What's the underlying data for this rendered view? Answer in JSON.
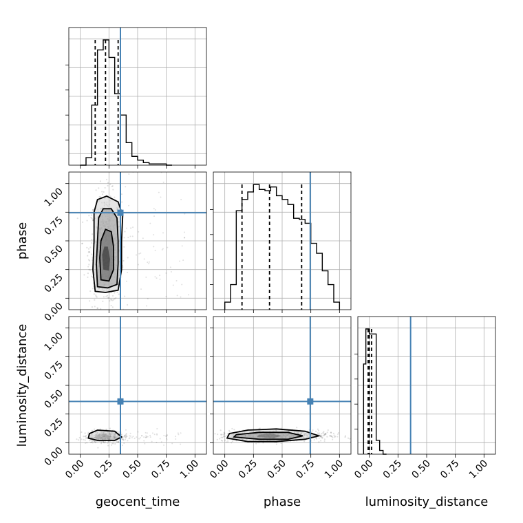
{
  "chart_data": {
    "type": "corner",
    "parameters": [
      "geocent_time",
      "phase",
      "luminosity_distance"
    ],
    "axis_range": [
      -0.1,
      1.1
    ],
    "tick_labels": [
      "0.00",
      "0.25",
      "0.50",
      "0.75",
      "1.00"
    ],
    "tick_values": [
      0,
      0.25,
      0.5,
      0.75,
      1.0
    ],
    "grid": true,
    "truths": {
      "geocent_time": 0.35,
      "phase": 0.745,
      "luminosity_distance": 0.36
    },
    "colors": {
      "truth": "#4682b4",
      "samples": "#000000",
      "grid": "#b0b0b0"
    },
    "quantiles": {
      "geocent_time": [
        0.13,
        0.22,
        0.33
      ],
      "phase": [
        0.15,
        0.39,
        0.67
      ],
      "luminosity_distance": [
        -0.01,
        0.0,
        0.02
      ]
    },
    "histograms": {
      "geocent_time": {
        "edges": [
          0.0,
          0.05,
          0.1,
          0.15,
          0.2,
          0.25,
          0.3,
          0.35,
          0.4,
          0.45,
          0.5,
          0.55,
          0.6,
          0.65,
          0.7,
          0.75,
          0.8
        ],
        "counts": [
          0.0,
          0.06,
          0.48,
          0.92,
          1.0,
          0.86,
          0.57,
          0.4,
          0.18,
          0.07,
          0.04,
          0.02,
          0.01,
          0.01,
          0.01,
          0.0
        ]
      },
      "phase": {
        "edges": [
          0.0,
          0.05,
          0.1,
          0.15,
          0.2,
          0.25,
          0.3,
          0.35,
          0.4,
          0.45,
          0.5,
          0.55,
          0.6,
          0.65,
          0.7,
          0.75,
          0.8,
          0.85,
          0.9,
          0.95,
          1.0
        ],
        "counts": [
          0.06,
          0.2,
          0.79,
          0.88,
          0.94,
          1.0,
          0.96,
          0.95,
          0.98,
          0.91,
          0.88,
          0.84,
          0.73,
          0.72,
          0.69,
          0.53,
          0.45,
          0.31,
          0.2,
          0.06
        ]
      },
      "luminosity_distance": {
        "edges": [
          -0.05,
          -0.03,
          0.0,
          0.03,
          0.06,
          0.09,
          0.12,
          0.15
        ],
        "counts": [
          0.72,
          1.0,
          0.96,
          0.96,
          0.11,
          0.03,
          0.0
        ]
      }
    },
    "contours_2d": [
      {
        "x": "geocent_time",
        "y": "phase",
        "levels": [
          [
            [
              0.13,
              0.06
            ],
            [
              0.22,
              0.05
            ],
            [
              0.33,
              0.07
            ],
            [
              0.36,
              0.25
            ],
            [
              0.36,
              0.5
            ],
            [
              0.37,
              0.72
            ],
            [
              0.33,
              0.84
            ],
            [
              0.23,
              0.89
            ],
            [
              0.15,
              0.86
            ],
            [
              0.12,
              0.75
            ],
            [
              0.12,
              0.5
            ],
            [
              0.11,
              0.25
            ]
          ],
          [
            [
              0.15,
              0.1
            ],
            [
              0.24,
              0.09
            ],
            [
              0.32,
              0.12
            ],
            [
              0.33,
              0.3
            ],
            [
              0.33,
              0.5
            ],
            [
              0.32,
              0.7
            ],
            [
              0.27,
              0.78
            ],
            [
              0.2,
              0.78
            ],
            [
              0.16,
              0.7
            ],
            [
              0.15,
              0.5
            ],
            [
              0.14,
              0.3
            ]
          ],
          [
            [
              0.18,
              0.16
            ],
            [
              0.25,
              0.15
            ],
            [
              0.29,
              0.25
            ],
            [
              0.29,
              0.45
            ],
            [
              0.27,
              0.58
            ],
            [
              0.22,
              0.6
            ],
            [
              0.18,
              0.5
            ],
            [
              0.17,
              0.35
            ]
          ],
          [
            [
              0.2,
              0.25
            ],
            [
              0.25,
              0.24
            ],
            [
              0.26,
              0.34
            ],
            [
              0.24,
              0.45
            ],
            [
              0.21,
              0.45
            ],
            [
              0.19,
              0.38
            ]
          ]
        ],
        "cloud": {
          "cx": 0.22,
          "cy": 0.42,
          "sx": 0.07,
          "sy": 0.24,
          "n": 700
        },
        "tail": {
          "xmax": 0.95,
          "n": 90
        }
      },
      {
        "x": "geocent_time",
        "y": "luminosity_distance",
        "levels": [
          [
            [
              0.07,
              0.04
            ],
            [
              0.15,
              0.02
            ],
            [
              0.3,
              0.02
            ],
            [
              0.36,
              0.05
            ],
            [
              0.3,
              0.1
            ],
            [
              0.15,
              0.11
            ],
            [
              0.08,
              0.08
            ]
          ],
          [
            [
              0.12,
              0.04
            ],
            [
              0.2,
              0.03
            ],
            [
              0.27,
              0.05
            ],
            [
              0.22,
              0.08
            ],
            [
              0.14,
              0.07
            ]
          ]
        ],
        "cloud": {
          "cx": 0.22,
          "cy": 0.05,
          "sx": 0.08,
          "sy": 0.025,
          "n": 450
        },
        "tail": {
          "xmax": 0.9,
          "n": 70
        }
      },
      {
        "x": "phase",
        "y": "luminosity_distance",
        "levels": [
          [
            [
              0.02,
              0.04
            ],
            [
              0.2,
              0.01
            ],
            [
              0.45,
              0.01
            ],
            [
              0.7,
              0.03
            ],
            [
              0.82,
              0.06
            ],
            [
              0.7,
              0.1
            ],
            [
              0.45,
              0.12
            ],
            [
              0.2,
              0.11
            ],
            [
              0.04,
              0.08
            ]
          ],
          [
            [
              0.08,
              0.05
            ],
            [
              0.3,
              0.03
            ],
            [
              0.55,
              0.03
            ],
            [
              0.68,
              0.06
            ],
            [
              0.55,
              0.09
            ],
            [
              0.3,
              0.09
            ],
            [
              0.1,
              0.07
            ]
          ],
          [
            [
              0.28,
              0.05
            ],
            [
              0.42,
              0.04
            ],
            [
              0.5,
              0.06
            ],
            [
              0.4,
              0.08
            ],
            [
              0.3,
              0.07
            ]
          ]
        ],
        "cloud": {
          "cx": 0.42,
          "cy": 0.06,
          "sx": 0.24,
          "sy": 0.025,
          "n": 700
        },
        "tail": {
          "xmax": 1.0,
          "n": 30
        }
      }
    ]
  }
}
